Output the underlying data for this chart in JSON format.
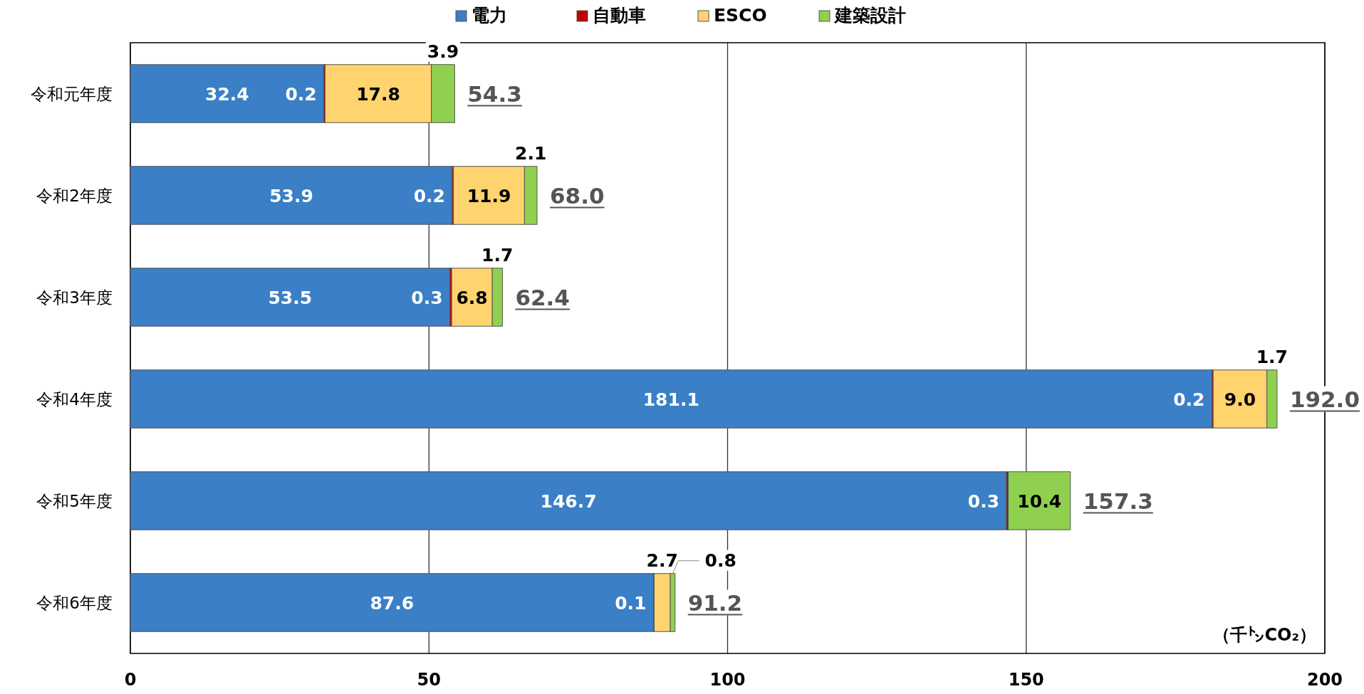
{
  "chart_data": {
    "type": "bar",
    "orientation": "horizontal",
    "stacked": true,
    "categories": [
      "令和元年度",
      "令和2年度",
      "令和3年度",
      "令和4年度",
      "令和5年度",
      "令和6年度"
    ],
    "series": [
      {
        "name": "電力",
        "color": "#3b7fc6",
        "values": [
          32.4,
          53.9,
          53.5,
          181.1,
          146.7,
          87.6
        ],
        "value_labels": [
          "32.4",
          "53.9",
          "53.5",
          "181.1",
          "146.7",
          "87.6"
        ]
      },
      {
        "name": "自動車",
        "color": "#c00000",
        "values": [
          0.2,
          0.2,
          0.3,
          0.2,
          0.3,
          0.1
        ],
        "value_labels": [
          "0.2",
          "0.2",
          "0.3",
          "0.2",
          "0.3",
          "0.1"
        ]
      },
      {
        "name": "ESCO",
        "color": "#ffd36e",
        "values": [
          17.8,
          11.9,
          6.8,
          9.0,
          null,
          2.7
        ],
        "value_labels": [
          "17.8",
          "11.9",
          "6.8",
          "9.0",
          null,
          "2.7"
        ]
      },
      {
        "name": "建築設計",
        "color": "#8fd14f",
        "values": [
          3.9,
          2.1,
          1.7,
          1.7,
          10.4,
          0.8
        ],
        "value_labels": [
          "3.9",
          "2.1",
          "1.7",
          "1.7",
          "10.4",
          "0.8"
        ]
      }
    ],
    "totals": [
      "54.3",
      "68.0",
      "62.4",
      "192.0",
      "157.3",
      "91.2"
    ],
    "xlim": [
      0,
      200
    ],
    "xticks": [
      0,
      50,
      100,
      150,
      200
    ],
    "grid": "x",
    "legend": "top",
    "annotations": [
      "（千㌧CO₂）"
    ]
  }
}
